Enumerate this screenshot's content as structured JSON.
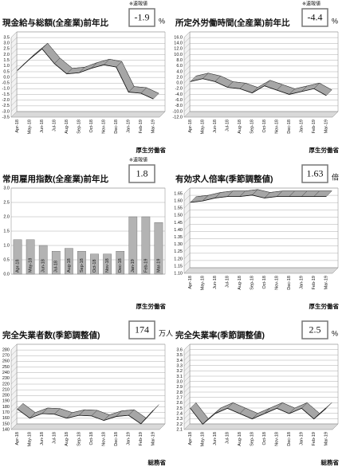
{
  "chart_data": [
    {
      "type": "line",
      "title": "現金給与総額(全産業)前年比",
      "note": "※速報値",
      "latest_value": -1.9,
      "unit": "%",
      "source": "厚生労働省",
      "categories": [
        "Apr-18",
        "May-18",
        "Jun-18",
        "Jul-18",
        "Aug-18",
        "Sep-18",
        "Oct-18",
        "Nov-18",
        "Dec-18",
        "Jan-19",
        "Feb-19",
        "Mar-19"
      ],
      "values": [
        0.6,
        1.6,
        2.5,
        1.2,
        0.3,
        0.4,
        0.8,
        1.1,
        0.9,
        -1.3,
        -1.4,
        -1.9
      ],
      "color": "#a6a6a6",
      "ylim": [
        -3.5,
        3.5
      ],
      "yticks": [
        3.5,
        {
          "value": 3,
          "label": "3.0"
        },
        2.5,
        {
          "value": 2,
          "label": "2.0"
        },
        1.5,
        {
          "value": 1,
          "label": "1.0"
        },
        0.5,
        {
          "value": 0,
          "label": "0.0"
        },
        -0.5,
        {
          "value": -1,
          "label": "-1.0"
        },
        -1.5,
        {
          "value": -2,
          "label": "-2.0"
        },
        -2.5,
        {
          "value": -3,
          "label": "-3.0"
        },
        -3.5
      ]
    },
    {
      "type": "line",
      "title": "所定外労働時間(全産業)前年比",
      "note": "※速報値",
      "latest_value": -4.4,
      "unit": "%",
      "source": "厚生労働省",
      "categories": [
        "Apr-18",
        "May-18",
        "Jun-18",
        "Jul-18",
        "Aug-18",
        "Sep-18",
        "Oct-18",
        "Nov-18",
        "Dec-18",
        "Jan-19",
        "Feb-19",
        "Mar-19"
      ],
      "values": [
        0.5,
        1.5,
        0.5,
        -1.5,
        -2.0,
        -3.5,
        -1.0,
        -2.5,
        -4.0,
        -3.0,
        -2.0,
        -4.4
      ],
      "color": "#a6a6a6",
      "ylim": [
        -12,
        16
      ],
      "yticks": [
        {
          "value": 16,
          "label": "16.0"
        },
        {
          "value": 14,
          "label": "14.0"
        },
        {
          "value": 12,
          "label": "12.0"
        },
        {
          "value": 10,
          "label": "10.0"
        },
        {
          "value": 8,
          "label": "8.0"
        },
        {
          "value": 6,
          "label": "6.0"
        },
        {
          "value": 4,
          "label": "4.0"
        },
        {
          "value": 2,
          "label": "2.0"
        },
        {
          "value": 0,
          "label": "0.0"
        },
        {
          "value": -2,
          "label": "-2.0"
        },
        {
          "value": -4,
          "label": "-4.0"
        },
        {
          "value": -6,
          "label": "-6.0"
        },
        {
          "value": -8,
          "label": "-8.0"
        },
        {
          "value": -10,
          "label": "-10.0"
        },
        {
          "value": -12,
          "label": "-12.0"
        }
      ]
    },
    {
      "type": "bar",
      "title": "常用雇用指数(全産業)前年比",
      "note": "※速報値",
      "latest_value": 1.8,
      "source": "厚生労働省",
      "categories": [
        "Apr-18",
        "May-18",
        "Jun-18",
        "Jul-18",
        "Aug-18",
        "Sep-18",
        "Oct-18",
        "Nov-18",
        "Dec-18",
        "Jan-19",
        "Feb-19",
        "Mar-19"
      ],
      "values": [
        1.2,
        1.2,
        1.0,
        0.8,
        0.9,
        0.8,
        0.7,
        0.7,
        0.8,
        2.0,
        2.0,
        1.8
      ],
      "color": "#b3b3b3",
      "ylim": [
        0,
        3
      ],
      "yticks": [
        {
          "value": 3,
          "label": "3.0"
        },
        2.5,
        {
          "value": 2,
          "label": "2.0"
        },
        1.5,
        {
          "value": 1,
          "label": "1.0"
        },
        0.5,
        {
          "value": 0,
          "label": "0.0"
        }
      ]
    },
    {
      "type": "line",
      "title": "有効求人倍率(季節調整値)",
      "latest_value": 1.63,
      "unit": "倍",
      "source": "厚生労働省",
      "categories": [
        "Apr-18",
        "May-18",
        "Jun-18",
        "Jul-18",
        "Aug-18",
        "Sep-18",
        "Oct-18",
        "Nov-18",
        "Dec-18",
        "Jan-19",
        "Feb-19",
        "Mar-19"
      ],
      "values": [
        1.59,
        1.6,
        1.62,
        1.63,
        1.63,
        1.64,
        1.62,
        1.63,
        1.63,
        1.63,
        1.63,
        1.63
      ],
      "color": "#a6a6a6",
      "ylim": [
        1.1,
        1.65
      ],
      "yticks": [
        1.65,
        {
          "value": 1.6,
          "label": "1.60"
        },
        1.55,
        {
          "value": 1.5,
          "label": "1.50"
        },
        1.45,
        {
          "value": 1.4,
          "label": "1.40"
        },
        1.35,
        {
          "value": 1.3,
          "label": "1.30"
        },
        1.25,
        {
          "value": 1.2,
          "label": "1.20"
        },
        1.15,
        {
          "value": 1.1,
          "label": "1.10"
        }
      ]
    },
    {
      "type": "line",
      "title": "完全失業者数(季節調整値)",
      "latest_value": 174,
      "unit": "万人",
      "source": "総務省",
      "categories": [
        "Apr-18",
        "May-18",
        "Jun-18",
        "Jul-18",
        "Aug-18",
        "Sep-18",
        "Oct-18",
        "Nov-18",
        "Dec-18",
        "Jan-19",
        "Feb-19",
        "Mar-19"
      ],
      "values": [
        176,
        160,
        168,
        167,
        160,
        165,
        164,
        156,
        163,
        165,
        150,
        174
      ],
      "color": "#a6a6a6",
      "ylim": [
        140,
        280
      ],
      "yticks": [
        280,
        270,
        260,
        250,
        240,
        230,
        220,
        210,
        200,
        190,
        180,
        170,
        160,
        150,
        140
      ]
    },
    {
      "type": "line",
      "title": "完全失業率(季節調整値)",
      "latest_value": 2.5,
      "unit": "%",
      "source": "総務省",
      "categories": [
        "Apr-18",
        "May-18",
        "Jun-18",
        "Jul-18",
        "Aug-18",
        "Sep-18",
        "Oct-18",
        "Nov-18",
        "Dec-18",
        "Jan-19",
        "Feb-19",
        "Mar-19"
      ],
      "values": [
        2.5,
        2.2,
        2.4,
        2.5,
        2.4,
        2.3,
        2.4,
        2.5,
        2.4,
        2.5,
        2.3,
        2.5
      ],
      "color": "#a6a6a6",
      "ylim": [
        2.1,
        3.6
      ],
      "yticks": [
        3.6,
        3.5,
        3.4,
        3.3,
        3.2,
        3.1,
        {
          "value": 3,
          "label": "3.0"
        },
        2.9,
        2.8,
        2.7,
        2.6,
        2.5,
        2.4,
        2.3,
        2.2,
        2.1
      ]
    }
  ]
}
